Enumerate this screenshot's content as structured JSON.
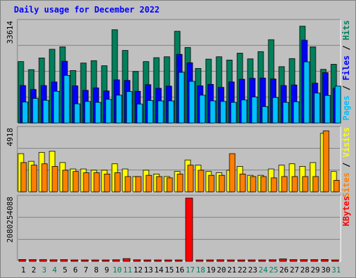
{
  "title": "Daily usage for December 2022",
  "colors": {
    "hits": "#00805c",
    "files": "#0000ff",
    "pages": "#00c0ff",
    "visits": "#ffff00",
    "sites": "#ff8000",
    "kbytes": "#ff0000",
    "title": "#0000ff",
    "weekend_day": "#00805c",
    "weekday": "#000000"
  },
  "day_labels": [
    "1",
    "2",
    "3",
    "4",
    "5",
    "6",
    "7",
    "8",
    "9",
    "10",
    "11",
    "12",
    "13",
    "14",
    "15",
    "16",
    "17",
    "18",
    "19",
    "20",
    "21",
    "22",
    "23",
    "24",
    "25",
    "26",
    "27",
    "28",
    "29",
    "30",
    "31"
  ],
  "weekend_days": [
    3,
    4,
    10,
    11,
    17,
    18,
    24,
    25,
    31
  ],
  "chart_data": [
    {
      "type": "bar",
      "panel": "hits-files-pages",
      "ytick_label": "33614",
      "ylim": [
        0,
        33614
      ],
      "legend": [
        "Pages",
        "Files",
        "Hits"
      ],
      "categories": [
        "1",
        "2",
        "3",
        "4",
        "5",
        "6",
        "7",
        "8",
        "9",
        "10",
        "11",
        "12",
        "13",
        "14",
        "15",
        "16",
        "17",
        "18",
        "19",
        "20",
        "21",
        "22",
        "23",
        "24",
        "25",
        "26",
        "27",
        "28",
        "29",
        "30",
        "31"
      ],
      "series": [
        {
          "name": "Hits",
          "values": [
            20500,
            17800,
            21700,
            24600,
            25400,
            17500,
            20000,
            20800,
            19100,
            31100,
            24200,
            17200,
            20500,
            21800,
            22100,
            30600,
            25200,
            18200,
            21300,
            22100,
            21000,
            23300,
            21400,
            23800,
            27800,
            18800,
            21500,
            32300,
            25400,
            17900,
            19600
          ]
        },
        {
          "name": "Files",
          "values": [
            12500,
            11200,
            12500,
            13700,
            20600,
            12400,
            10900,
            11700,
            10700,
            14400,
            14200,
            10600,
            12800,
            11600,
            12300,
            22900,
            20100,
            12400,
            12900,
            11900,
            13700,
            14600,
            14900,
            15000,
            14700,
            12500,
            12700,
            27600,
            13300,
            16800,
            11600
          ]
        },
        {
          "name": "Pages",
          "values": [
            7000,
            8200,
            7600,
            10600,
            15900,
            6400,
            7200,
            6900,
            7900,
            9300,
            10500,
            6300,
            7500,
            7400,
            7400,
            16900,
            13900,
            9300,
            7400,
            7200,
            6900,
            7700,
            8700,
            5500,
            8500,
            6900,
            7100,
            20400,
            10000,
            9200,
            12300
          ]
        }
      ]
    },
    {
      "type": "bar",
      "panel": "visits-sites",
      "ytick_label": "4918",
      "ylim": [
        0,
        4918
      ],
      "legend": [
        "Sites",
        "Visits"
      ],
      "categories": [
        "1",
        "2",
        "3",
        "4",
        "5",
        "6",
        "7",
        "8",
        "9",
        "10",
        "11",
        "12",
        "13",
        "14",
        "15",
        "16",
        "17",
        "18",
        "19",
        "20",
        "21",
        "22",
        "23",
        "24",
        "25",
        "26",
        "27",
        "28",
        "29",
        "30",
        "31"
      ],
      "series": [
        {
          "name": "Visits",
          "values": [
            3000,
            2400,
            3100,
            3200,
            2300,
            1800,
            1800,
            1700,
            1700,
            2200,
            1800,
            1200,
            1700,
            1400,
            1200,
            1600,
            2500,
            2100,
            1600,
            1500,
            1700,
            2000,
            1300,
            1300,
            1800,
            2100,
            2200,
            2000,
            2300,
            4600,
            1600
          ]
        },
        {
          "name": "Sites",
          "values": [
            2300,
            2100,
            2200,
            2000,
            1700,
            1600,
            1500,
            1500,
            1400,
            1500,
            1200,
            1200,
            1300,
            1200,
            1100,
            1400,
            2100,
            1700,
            1300,
            1300,
            3000,
            1400,
            1200,
            1200,
            1100,
            1200,
            1200,
            1200,
            1200,
            4800,
            900
          ]
        }
      ]
    },
    {
      "type": "bar",
      "panel": "kbytes",
      "ytick_label": "2080254088",
      "ylim": [
        0,
        2080254088
      ],
      "legend": [
        "KBytes"
      ],
      "categories": [
        "1",
        "2",
        "3",
        "4",
        "5",
        "6",
        "7",
        "8",
        "9",
        "10",
        "11",
        "12",
        "13",
        "14",
        "15",
        "16",
        "17",
        "18",
        "19",
        "20",
        "21",
        "22",
        "23",
        "24",
        "25",
        "26",
        "27",
        "28",
        "29",
        "30",
        "31"
      ],
      "series": [
        {
          "name": "KBytes",
          "values": [
            60000000,
            55000000,
            55000000,
            50000000,
            55000000,
            45000000,
            45000000,
            45000000,
            45000000,
            50000000,
            90000000,
            50000000,
            45000000,
            45000000,
            45000000,
            45000000,
            2080254088,
            45000000,
            45000000,
            50000000,
            45000000,
            45000000,
            45000000,
            45000000,
            50000000,
            80000000,
            55000000,
            55000000,
            55000000,
            60000000,
            45000000
          ]
        }
      ]
    }
  ]
}
